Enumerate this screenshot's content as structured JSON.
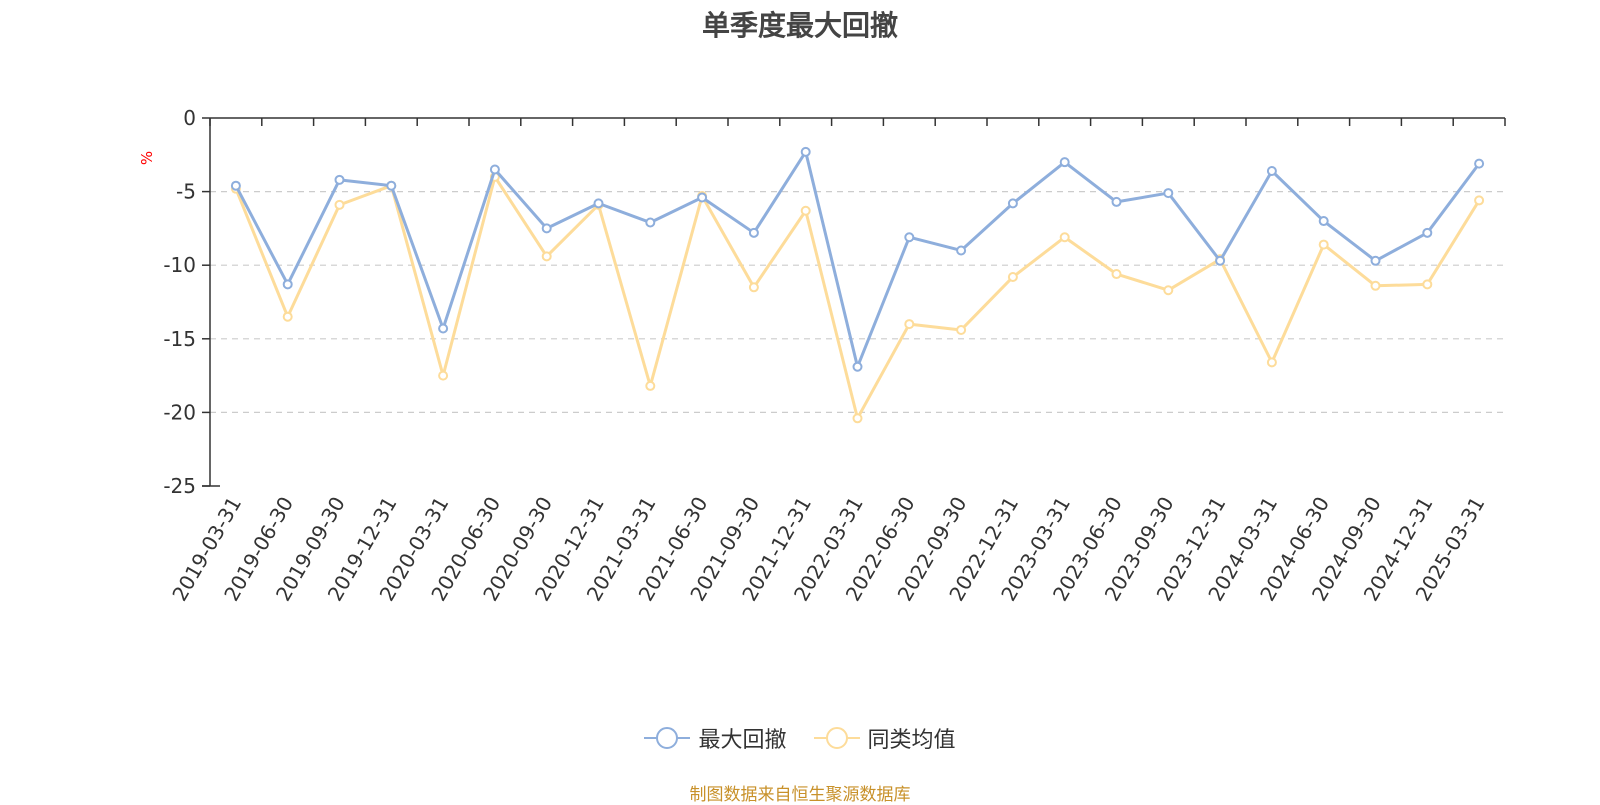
{
  "chart_data": {
    "type": "line",
    "title": "单季度最大回撤",
    "ylabel": "%",
    "ylim": [
      -25,
      0
    ],
    "yticks": [
      0,
      -5,
      -10,
      -15,
      -20,
      -25
    ],
    "categories": [
      "2019-03-31",
      "2019-06-30",
      "2019-09-30",
      "2019-12-31",
      "2020-03-31",
      "2020-06-30",
      "2020-09-30",
      "2020-12-31",
      "2021-03-31",
      "2021-06-30",
      "2021-09-30",
      "2021-12-31",
      "2022-03-31",
      "2022-06-30",
      "2022-09-30",
      "2022-12-31",
      "2023-03-31",
      "2023-06-30",
      "2023-09-30",
      "2023-12-31",
      "2024-03-31",
      "2024-06-30",
      "2024-09-30",
      "2024-12-31",
      "2025-03-31"
    ],
    "series": [
      {
        "name": "最大回撤",
        "color": "#8eaedc",
        "values": [
          -4.6,
          -11.3,
          -4.2,
          -4.6,
          -14.3,
          -3.5,
          -7.5,
          -5.8,
          -7.1,
          -5.4,
          -7.8,
          -2.3,
          -16.9,
          -8.1,
          -9.0,
          -5.8,
          -3.0,
          -5.7,
          -5.1,
          -9.7,
          -3.6,
          -7.0,
          -9.7,
          -7.8,
          -3.1
        ]
      },
      {
        "name": "同类均值",
        "color": "#fddc9a",
        "values": [
          -4.8,
          -13.5,
          -5.9,
          -4.6,
          -17.5,
          -4.0,
          -9.4,
          -5.9,
          -18.2,
          -5.3,
          -11.5,
          -6.3,
          -20.4,
          -14.0,
          -14.4,
          -10.8,
          -8.1,
          -10.6,
          -11.7,
          -9.6,
          -16.6,
          -8.6,
          -11.4,
          -11.3,
          -5.6
        ]
      }
    ],
    "grid": "horizontal-dashed",
    "legend": "bottom-center",
    "source": "制图数据来自恒生聚源数据库"
  }
}
